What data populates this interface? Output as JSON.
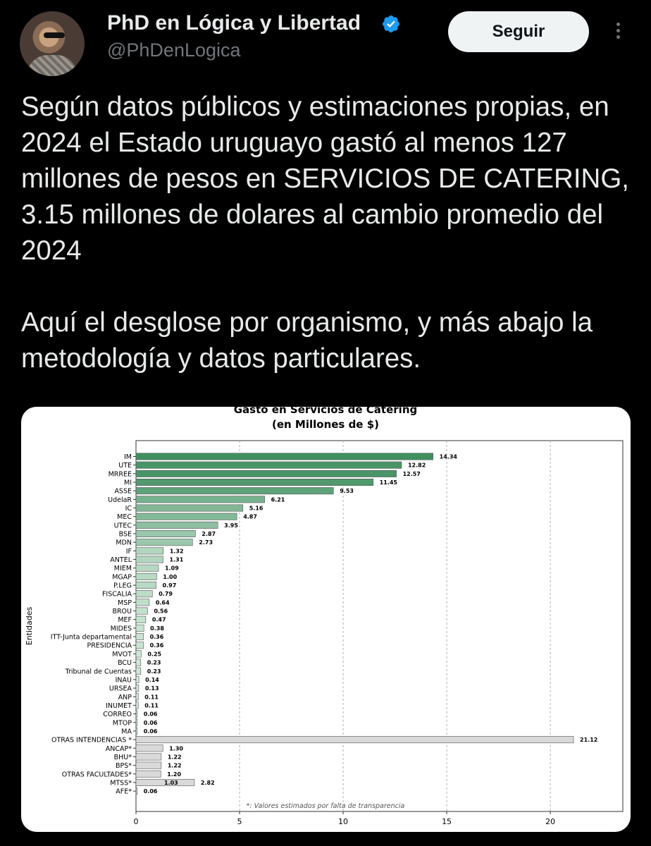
{
  "author": {
    "name": "PhD en Lógica y Libertad",
    "handle": "@PhDenLogica",
    "verified_icon": "verified-badge-icon",
    "badge_color": "#1d9bf0"
  },
  "actions": {
    "follow_label": "Seguir",
    "more_icon": "more-options-icon"
  },
  "tweet": {
    "paragraph1": "Según datos públicos y estimaciones propias, en 2024 el Estado uruguayo gastó al menos 127 millones de pesos en SERVICIOS DE CATERING, 3.15 millones de dolares al cambio promedio del 2024",
    "paragraph2": "Aquí el desglose por organismo, y más abajo la metodología y datos particulares."
  },
  "chart_data": {
    "type": "bar",
    "orientation": "horizontal",
    "title": "Gasto en Servicios de Catering",
    "subtitle": "(en Millones de $)",
    "ylabel": "Entidades",
    "xlim": [
      0,
      23.5
    ],
    "xticks": [
      0,
      5,
      10,
      15,
      20
    ],
    "grid": "vertical dashed",
    "footnote": "*: Valores estimados por falta de transparencia",
    "colors": {
      "high": "#3f8f5f",
      "low": "#e3f4e8",
      "estimated": "#d9d9d9",
      "label_fg": "#000000"
    },
    "categories": [
      "IM",
      "UTE",
      "MRREE",
      "MI",
      "ASSE",
      "UdelaR",
      "IC",
      "MEC",
      "UTEC",
      "BSE",
      "MDN",
      "IF",
      "ANTEL",
      "MIEM",
      "MGAP",
      "P.LEG",
      "FISCALIA",
      "MSP",
      "BROU",
      "MEF",
      "MIDES",
      "ITT-Junta departamental",
      "PRESIDENCIA",
      "MVOT",
      "BCU",
      "Tribunal de Cuentas",
      "INAU",
      "URSEA",
      "ANP",
      "INUMET",
      "CORREO",
      "MTOP",
      "MA",
      "OTRAS INTENDENCIAS *",
      "ANCAP*",
      "BHU*",
      "BPS*",
      "OTRAS FACULTADES*",
      "MTSS*",
      "AFE*"
    ],
    "values": [
      14.34,
      12.82,
      12.57,
      11.45,
      9.53,
      6.21,
      5.16,
      4.87,
      3.95,
      2.87,
      2.73,
      1.32,
      1.31,
      1.09,
      1.0,
      0.97,
      0.79,
      0.64,
      0.56,
      0.47,
      0.38,
      0.36,
      0.36,
      0.25,
      0.23,
      0.23,
      0.14,
      0.13,
      0.11,
      0.11,
      0.06,
      0.06,
      0.06,
      21.12,
      1.3,
      1.22,
      1.22,
      1.2,
      2.82,
      0.06
    ],
    "labels": [
      "14.34",
      "12.82",
      "12.57",
      "11.45",
      "9.53",
      "6.21",
      "5.16",
      "4.87",
      "3.95",
      "2.87",
      "2.73",
      "1.32",
      "1.31",
      "1.09",
      "1.00",
      "0.97",
      "0.79",
      "0.64",
      "0.56",
      "0.47",
      "0.38",
      "0.36",
      "0.36",
      "0.25",
      "0.23",
      "0.23",
      "0.14",
      "0.13",
      "0.11",
      "0.11",
      "0.06",
      "0.06",
      "0.06",
      "21.12",
      "1.30",
      "1.22",
      "1.22",
      "1.20",
      "2.82",
      "0.06"
    ],
    "extra_label": {
      "category": "MTSS*",
      "text": "1.03"
    },
    "estimated_from_index": 33
  }
}
